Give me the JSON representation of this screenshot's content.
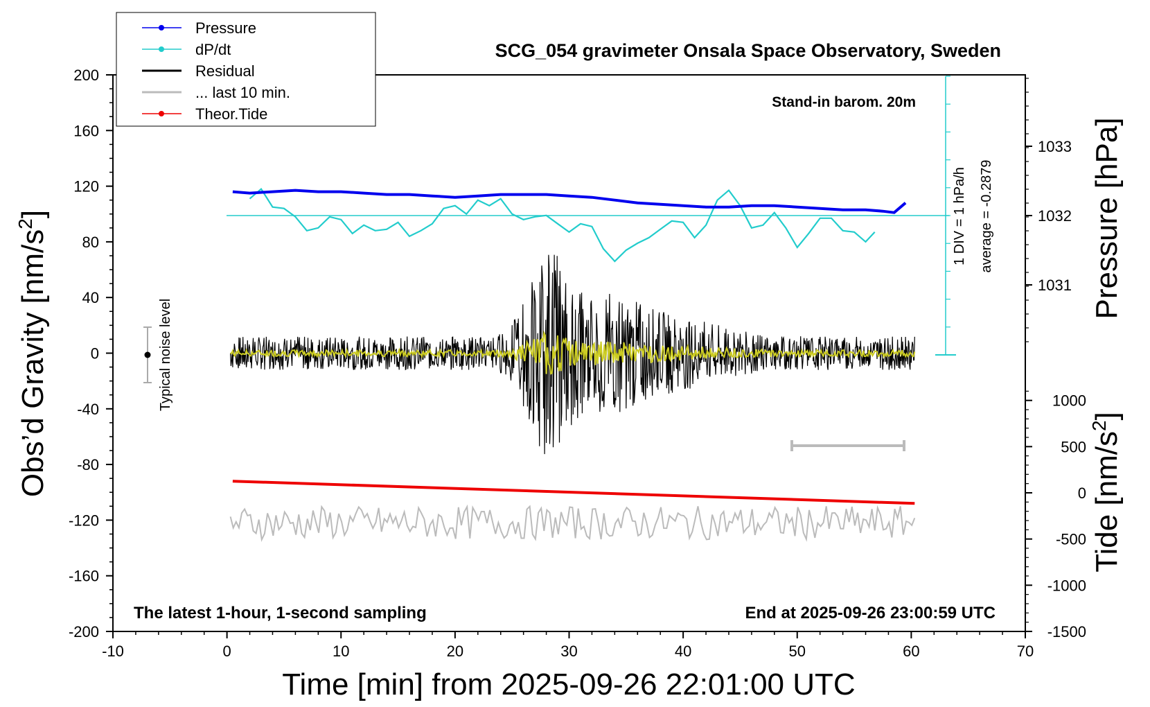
{
  "chart_data": {
    "type": "line",
    "title": "SCG_054 gravimeter Onsala Space Observatory, Sweden",
    "xlabel": "Time [min] from 2025-09-26 22:01:00 UTC",
    "ylabel_left": "Obs’d Gravity [nm/s",
    "ylabel_left_sup": "2",
    "ylabel_left_end": "]",
    "ylabel_right_top": "Pressure [hPa]",
    "ylabel_right_bottom": "Tide [nm/s",
    "ylabel_right_bottom_sup": "2",
    "ylabel_right_bottom_end": "]",
    "xlim": [
      -10,
      70
    ],
    "ylim_left": [
      -200,
      200
    ],
    "x_ticks": [
      "-10",
      "0",
      "10",
      "20",
      "30",
      "40",
      "50",
      "60",
      "70"
    ],
    "y_ticks_left": [
      "200",
      "160",
      "120",
      "80",
      "40",
      "0",
      "-40",
      "-80",
      "-120",
      "-160",
      "-200"
    ],
    "pressure_ticks": [
      "1033",
      "1032",
      "1031"
    ],
    "tide_ticks": [
      "1000",
      "500",
      "0",
      "-500",
      "-1000",
      "-1500"
    ],
    "annotations": {
      "barom": "Stand-in barom. 20m",
      "latest": "The latest 1-hour, 1-second sampling",
      "end": "End at 2025-09-26 23:00:59 UTC",
      "noise": "Typical noise level",
      "div": "1 DIV = 1 hPa/h",
      "average": "average = -0.2879"
    },
    "legend": [
      {
        "label": "Pressure",
        "color": "#0000ee",
        "marker": true
      },
      {
        "label": "dP/dt",
        "color": "#22cccc",
        "marker": true
      },
      {
        "label": "Residual",
        "color": "#000000",
        "marker": false
      },
      {
        "label": "... last 10 min.",
        "color": "#bbbbbb",
        "marker": false
      },
      {
        "label": "Theor.Tide",
        "color": "#ee0000",
        "marker": true
      }
    ],
    "series": [
      {
        "name": "Pressure",
        "color": "#0000ee",
        "x": [
          0.5,
          2,
          4,
          6,
          8,
          10,
          12,
          14,
          16,
          18,
          20,
          22,
          24,
          26,
          28,
          30,
          32,
          34,
          36,
          38,
          40,
          42,
          44,
          46,
          48,
          50,
          52,
          54,
          56,
          57.5,
          58.5,
          59.5
        ],
        "y": [
          116,
          115,
          116,
          117,
          116,
          116,
          115,
          114,
          114,
          113,
          112,
          113,
          114,
          114,
          114,
          113,
          112,
          110,
          108,
          107,
          106,
          105,
          105,
          106,
          106,
          105,
          104,
          103,
          103,
          102,
          101,
          108
        ]
      },
      {
        "name": "dP/dt",
        "color": "#22cccc",
        "x": [
          2,
          3,
          4,
          5,
          6,
          7,
          8,
          9,
          10,
          11,
          12,
          13,
          14,
          15,
          16,
          17,
          18,
          19,
          20,
          21,
          22,
          23,
          24,
          25,
          26,
          27,
          28,
          29,
          30,
          31,
          32,
          33,
          34,
          35,
          36,
          37,
          38,
          39,
          40,
          41,
          42,
          43,
          44,
          45,
          46,
          47,
          48,
          49,
          50,
          51,
          52,
          53,
          54,
          55,
          56,
          56.8
        ],
        "y": [
          111,
          118,
          105,
          104,
          98,
          88,
          90,
          98,
          96,
          86,
          92,
          88,
          89,
          94,
          84,
          88,
          93,
          104,
          106,
          100,
          110,
          106,
          111,
          100,
          96,
          98,
          99,
          93,
          87,
          93,
          91,
          75,
          66,
          74,
          79,
          83,
          89,
          95,
          94,
          83,
          92,
          110,
          117,
          106,
          90,
          92,
          101,
          90,
          76,
          86,
          97,
          97,
          88,
          87,
          80,
          87
        ]
      },
      {
        "name": "Theor.Tide",
        "color": "#ee0000",
        "x": [
          0.5,
          60.3
        ],
        "y": [
          -92,
          -108
        ]
      }
    ]
  }
}
